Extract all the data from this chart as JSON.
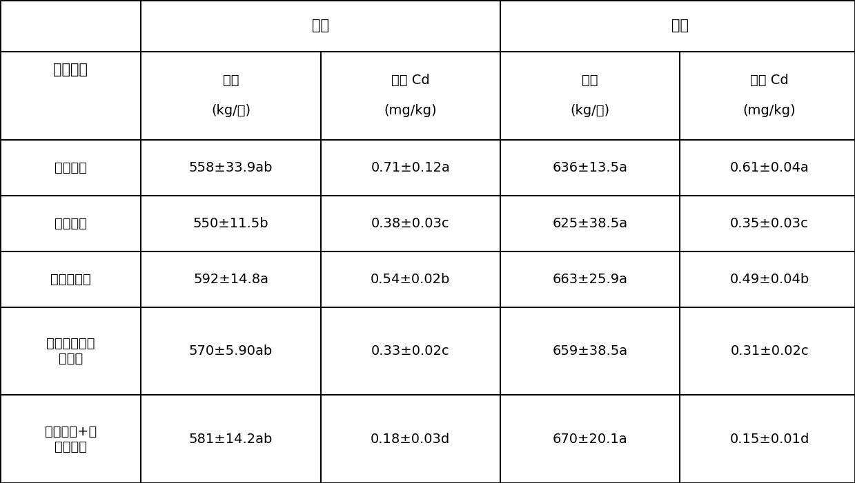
{
  "col_header_row1": [
    "",
    "贵溪",
    "",
    "铜陵",
    ""
  ],
  "col_header_row2": [
    "处理方式",
    "产量\n\n(kg/亩)",
    "糙米 Cd\n\n(mg/kg)",
    "产量\n\n(kg/亩)",
    "糙米 Cd\n\n(mg/kg)"
  ],
  "rows": [
    [
      "空白对照",
      "558±33.9ab",
      "0.71±0.12a",
      "636±13.5a",
      "0.61±0.04a"
    ],
    [
      "基施石灰",
      "550±11.5b",
      "0.38±0.03c",
      "625±38.5a",
      "0.35±0.03c"
    ],
    [
      "分蘖期铁肥",
      "592±14.8a",
      "0.54±0.02b",
      "663±25.9a",
      "0.49±0.04b"
    ],
    [
      "石灰与铁肥混\n合基施",
      "570±5.90ab",
      "0.33±0.02c",
      "659±38.5a",
      "0.31±0.02c"
    ],
    [
      "基施石灰+分\n蘖期铁肥",
      "581±14.2ab",
      "0.18±0.03d",
      "670±20.1a",
      "0.15±0.01d"
    ]
  ],
  "background_color": "#ffffff",
  "line_color": "#000000",
  "font_size": 14,
  "font_size_header": 15
}
